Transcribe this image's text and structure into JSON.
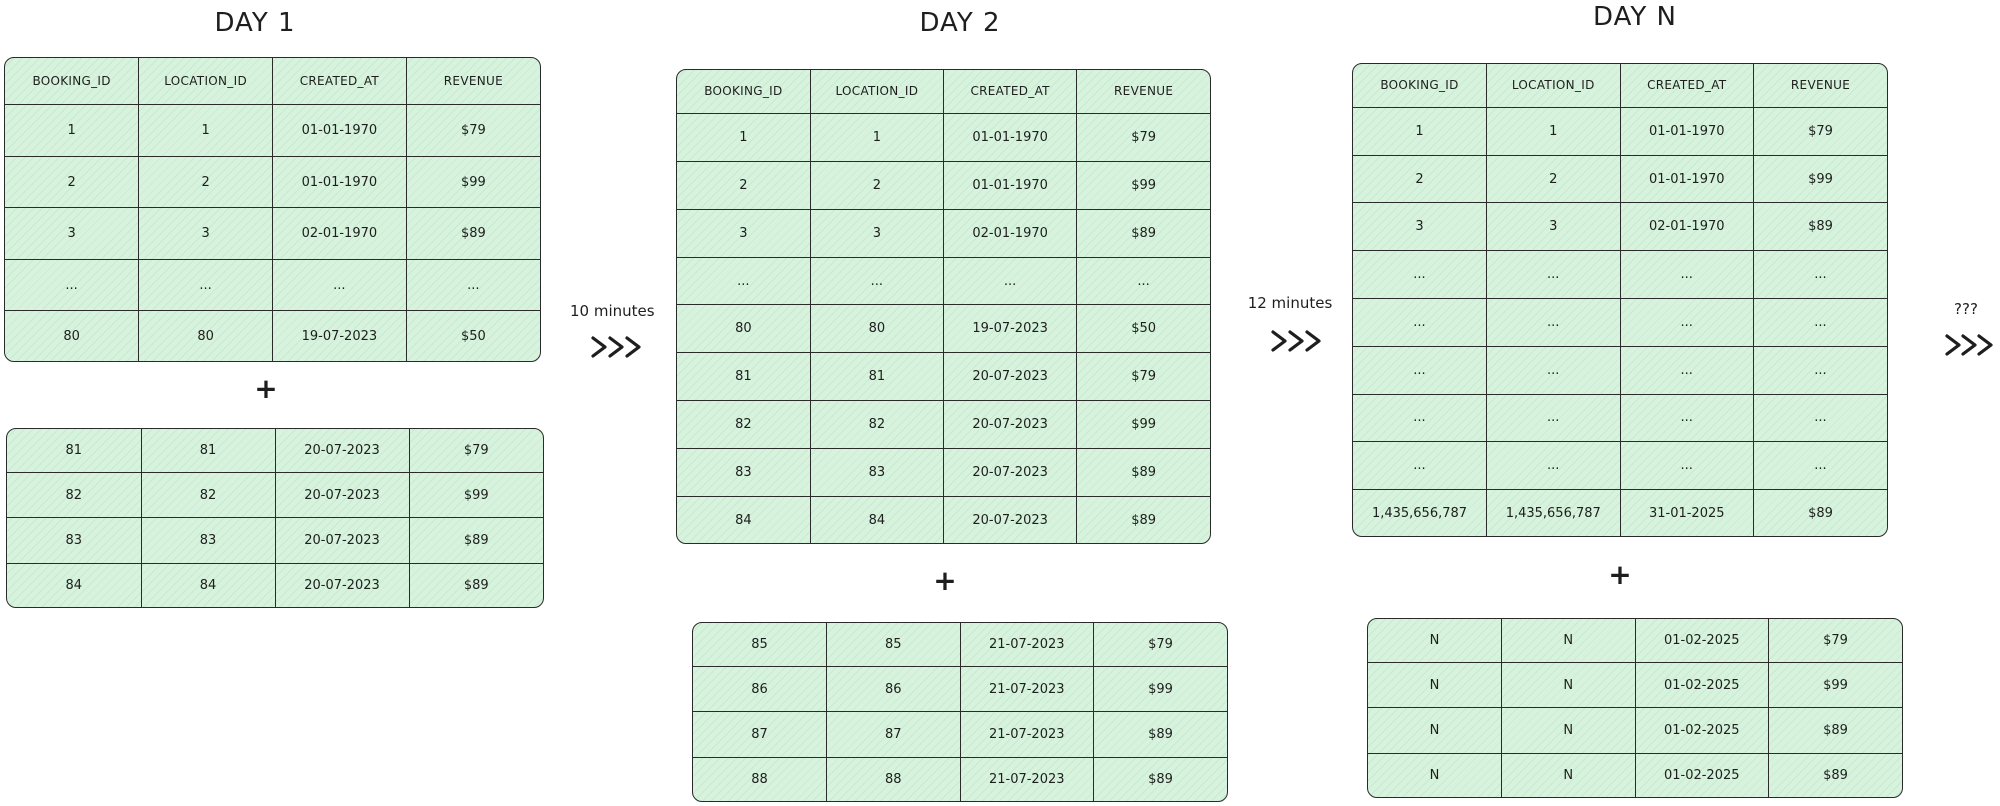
{
  "headers": [
    "BOOKING_ID",
    "LOCATION_ID",
    "CREATED_AT",
    "REVENUE"
  ],
  "day1": {
    "title": "DAY 1",
    "main_rows": [
      [
        "1",
        "1",
        "01-01-1970",
        "$79"
      ],
      [
        "2",
        "2",
        "01-01-1970",
        "$99"
      ],
      [
        "3",
        "3",
        "02-01-1970",
        "$89"
      ],
      [
        "...",
        "...",
        "...",
        "..."
      ],
      [
        "80",
        "80",
        "19-07-2023",
        "$50"
      ]
    ],
    "new_rows": [
      [
        "81",
        "81",
        "20-07-2023",
        "$79"
      ],
      [
        "82",
        "82",
        "20-07-2023",
        "$99"
      ],
      [
        "83",
        "83",
        "20-07-2023",
        "$89"
      ],
      [
        "84",
        "84",
        "20-07-2023",
        "$89"
      ]
    ]
  },
  "arrow1_label": "10 minutes",
  "day2": {
    "title": "DAY 2",
    "main_rows": [
      [
        "1",
        "1",
        "01-01-1970",
        "$79"
      ],
      [
        "2",
        "2",
        "01-01-1970",
        "$99"
      ],
      [
        "3",
        "3",
        "02-01-1970",
        "$89"
      ],
      [
        "...",
        "...",
        "...",
        "..."
      ],
      [
        "80",
        "80",
        "19-07-2023",
        "$50"
      ],
      [
        "81",
        "81",
        "20-07-2023",
        "$79"
      ],
      [
        "82",
        "82",
        "20-07-2023",
        "$99"
      ],
      [
        "83",
        "83",
        "20-07-2023",
        "$89"
      ],
      [
        "84",
        "84",
        "20-07-2023",
        "$89"
      ]
    ],
    "new_rows": [
      [
        "85",
        "85",
        "21-07-2023",
        "$79"
      ],
      [
        "86",
        "86",
        "21-07-2023",
        "$99"
      ],
      [
        "87",
        "87",
        "21-07-2023",
        "$89"
      ],
      [
        "88",
        "88",
        "21-07-2023",
        "$89"
      ]
    ]
  },
  "arrow2_label": "12 minutes",
  "dayn": {
    "title": "DAY N",
    "main_rows": [
      [
        "1",
        "1",
        "01-01-1970",
        "$79"
      ],
      [
        "2",
        "2",
        "01-01-1970",
        "$99"
      ],
      [
        "3",
        "3",
        "02-01-1970",
        "$89"
      ],
      [
        "...",
        "...",
        "...",
        "..."
      ],
      [
        "...",
        "...",
        "...",
        "..."
      ],
      [
        "...",
        "...",
        "...",
        "..."
      ],
      [
        "...",
        "...",
        "...",
        "..."
      ],
      [
        "...",
        "...",
        "...",
        "..."
      ],
      [
        "1,435,656,787",
        "1,435,656,787",
        "31-01-2025",
        "$89"
      ]
    ],
    "new_rows": [
      [
        "N",
        "N",
        "01-02-2025",
        "$79"
      ],
      [
        "N",
        "N",
        "01-02-2025",
        "$99"
      ],
      [
        "N",
        "N",
        "01-02-2025",
        "$89"
      ],
      [
        "N",
        "N",
        "01-02-2025",
        "$89"
      ]
    ]
  },
  "arrow3_label": "???",
  "plus_symbol": "+",
  "arrow_glyph": ">>>"
}
